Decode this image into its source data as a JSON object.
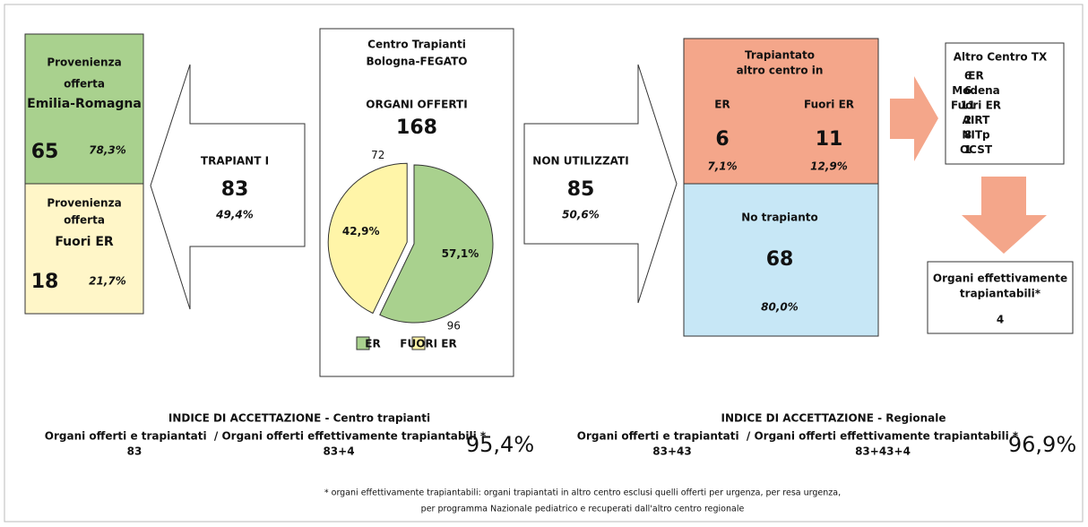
{
  "source_panel": {
    "er": {
      "lines": [
        "Provenienza",
        "offerta"
      ],
      "region": "Emilia-Romagna",
      "count": 65,
      "percent": "78,3%"
    },
    "fuori": {
      "lines": [
        "Provenienza",
        "offerta"
      ],
      "region": "Fuori ER",
      "count": 18,
      "percent": "21,7%"
    }
  },
  "transplanted": {
    "label": "TRAPIANT I",
    "count": 83,
    "percent": "49,4%"
  },
  "center": {
    "title": [
      "Centro Trapianti",
      "Bologna-FEGATO"
    ],
    "heading": "ORGANI OFFERTI",
    "total": 168,
    "pie": {
      "slices": [
        {
          "name": "ER",
          "value": 96,
          "label": "57,1%",
          "color": "#a9d18e"
        },
        {
          "name": "FUORI ER",
          "value": 72,
          "label": "42,9%",
          "color": "#fff5a8"
        }
      ]
    }
  },
  "not_used": {
    "label": "NON UTILIZZATI",
    "count": 85,
    "percent": "50,6%"
  },
  "other_center": {
    "title": [
      "Trapiantato",
      "altro centro in"
    ],
    "er": {
      "label": "ER",
      "count": 6,
      "percent": "7,1%"
    },
    "fuori": {
      "label": "Fuori ER",
      "count": 11,
      "percent": "12,9%"
    }
  },
  "no_transplant": {
    "label": "No trapianto",
    "count": 68,
    "percent": "80,0%"
  },
  "altro_tx": {
    "title": "Altro Centro TX",
    "rows": [
      [
        6,
        "ER"
      ],
      [
        6,
        "Modena"
      ],
      [
        11,
        "Fuori ER"
      ],
      [
        2,
        "AIRT"
      ],
      [
        8,
        "NITp"
      ],
      [
        1,
        "OCST"
      ]
    ]
  },
  "transplantable": {
    "title": [
      "Organi effettivamente",
      "trapiantabili*"
    ],
    "count": 4
  },
  "indices": [
    {
      "title": "INDICE DI ACCETTAZIONE - Centro trapianti",
      "formula": "Organi offerti e trapiantati  / Organi offerti effettivamente trapiantabili *",
      "numerator": "83",
      "denominator": "83+4",
      "result": "95,4%"
    },
    {
      "title": "INDICE DI ACCETTAZIONE - Regionale",
      "formula": "Organi offerti e trapiantati  / Organi offerti effettivamente trapiantabili *",
      "numerator": "83+43",
      "denominator": "83+43+4",
      "result": "96,9%"
    }
  ],
  "footnote": [
    "* organi effettivamente trapiantabili: organi trapiantati in altro centro esclusi quelli offerti per urgenza, per resa urgenza,",
    "per programma Nazionale pediatrico e recuperati dall'altro centro regionale"
  ]
}
